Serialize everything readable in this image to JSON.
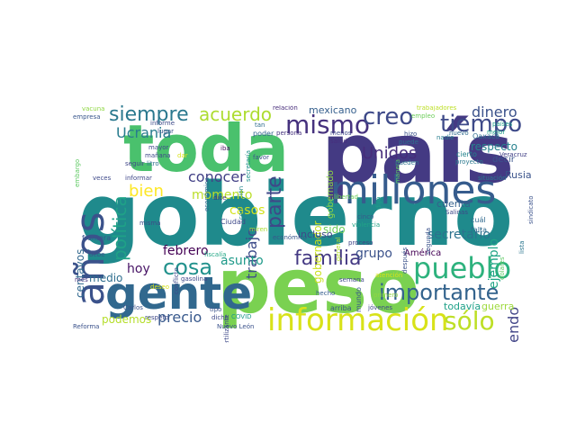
{
  "word_cloud": {
    "words": [
      {
        "id": "gobierno",
        "text": "gobierno",
        "color": "#1f8a8c"
      },
      {
        "id": "pais",
        "text": "país",
        "color": "#443a83"
      },
      {
        "id": "peso",
        "text": "peso",
        "color": "#7ad151"
      },
      {
        "id": "toda",
        "text": "toda",
        "color": "#4ac16d"
      },
      {
        "id": "gente",
        "text": "gente",
        "color": "#31688e"
      },
      {
        "id": "millones",
        "text": "millones",
        "color": "#365c8d"
      },
      {
        "id": "informacion",
        "text": "información",
        "color": "#d8e219"
      },
      {
        "id": "pueblo",
        "text": "pueblo",
        "color": "#2db27d"
      },
      {
        "id": "importante",
        "text": "importante",
        "color": "#33638d"
      },
      {
        "id": "anos",
        "text": "años",
        "color": "#3b528b"
      },
      {
        "id": "mismo",
        "text": "mismo",
        "color": "#46327e"
      },
      {
        "id": "tiempo",
        "text": "tiempo",
        "color": "#3e4a89"
      },
      {
        "id": "creo",
        "text": "creo",
        "color": "#3e4a89"
      },
      {
        "id": "siempre",
        "text": "siempre",
        "color": "#2a788e"
      },
      {
        "id": "acuerdo",
        "text": "acuerdo",
        "color": "#addc30"
      },
      {
        "id": "solo",
        "text": "sólo",
        "color": "#bddf26"
      },
      {
        "id": "familia",
        "text": "familia",
        "color": "#443983"
      },
      {
        "id": "cosa",
        "text": "cosa",
        "color": "#21918c"
      },
      {
        "id": "parte",
        "text": "parte",
        "color": "#3f4788"
      },
      {
        "id": "unidos",
        "text": "Unidos",
        "color": "#472d7b"
      },
      {
        "id": "politica",
        "text": "política",
        "color": "#1fa187"
      },
      {
        "id": "bien",
        "text": "bien",
        "color": "#fde725"
      },
      {
        "id": "ucrania",
        "text": "Ucrania",
        "color": "#287c8e"
      },
      {
        "id": "conocer",
        "text": "conocer",
        "color": "#424086"
      },
      {
        "id": "dinero",
        "text": "dinero",
        "color": "#3b528b"
      },
      {
        "id": "trabajo",
        "text": "trabajo",
        "color": "#3e4c8a"
      },
      {
        "id": "precio",
        "text": "precio",
        "color": "#38598c"
      },
      {
        "id": "haciendo",
        "text": "haciendo",
        "color": "#414487"
      },
      {
        "id": "hoy",
        "text": "hoy",
        "color": "#471365"
      },
      {
        "id": "casos",
        "text": "casos",
        "color": "#d2e21b"
      },
      {
        "id": "momento",
        "text": "momento",
        "color": "#bade28"
      },
      {
        "id": "febrero",
        "text": "febrero",
        "color": "#440154"
      },
      {
        "id": "asunto",
        "text": "asunto",
        "color": "#1f9a8a"
      },
      {
        "id": "grupo",
        "text": "grupo",
        "color": "#3b528b"
      },
      {
        "id": "secretario",
        "text": "secretario",
        "color": "#2c728e"
      },
      {
        "id": "medio",
        "text": "medio",
        "color": "#2e6e8e"
      },
      {
        "id": "podemos",
        "text": "podemos",
        "color": "#b5de2b"
      },
      {
        "id": "centavos",
        "text": "centavos",
        "color": "#31688e"
      },
      {
        "id": "ejemplo",
        "text": "ejemplo",
        "color": "#20a486"
      },
      {
        "id": "respecto",
        "text": "respecto",
        "color": "#26828e"
      },
      {
        "id": "gobernador",
        "text": "gobernador",
        "color": "#cae11f"
      },
      {
        "id": "sido",
        "text": "sido",
        "color": "#6ece58"
      },
      {
        "id": "incluso",
        "text": "incluso",
        "color": "#3e4a89"
      },
      {
        "id": "cuenta",
        "text": "cuenta",
        "color": "#34618d"
      },
      {
        "id": "rusia",
        "text": "Rusia",
        "color": "#3a538b"
      },
      {
        "id": "mexicano",
        "text": "mexicano",
        "color": "#355f8d"
      },
      {
        "id": "todavia",
        "text": "todavía",
        "color": "#1fa188"
      },
      {
        "id": "guerra",
        "text": "guerra",
        "color": "#9dd93b"
      },
      {
        "id": "america",
        "text": "América",
        "color": "#440154"
      },
      {
        "id": "gobernado",
        "text": "gobernado",
        "color": "#8fd744"
      },
      {
        "id": "decir",
        "text": "decir",
        "color": "#3a548c"
      },
      {
        "id": "mundo",
        "text": "mundo",
        "color": "#39568c"
      },
      {
        "id": "empresa",
        "text": "empresa",
        "color": "#39568c"
      },
      {
        "id": "vacuna",
        "text": "vacuna",
        "color": "#8fd744"
      },
      {
        "id": "informe",
        "text": "informe",
        "color": "#3e4a89"
      },
      {
        "id": "lugar",
        "text": "lugar",
        "color": "#3b528b"
      },
      {
        "id": "relacion",
        "text": "relación",
        "color": "#472c7a"
      },
      {
        "id": "trabajadores",
        "text": "trabajadores",
        "color": "#bddf26"
      },
      {
        "id": "empleo",
        "text": "empleo",
        "color": "#6ccd5a"
      },
      {
        "id": "nuevo",
        "text": "nuevo",
        "color": "#2f6b8e"
      },
      {
        "id": "mejor",
        "text": "mejor",
        "color": "#1fa187"
      },
      {
        "id": "proyecto",
        "text": "proyecto",
        "color": "#2a788e"
      },
      {
        "id": "paises",
        "text": "países",
        "color": "#1f9e89"
      },
      {
        "id": "veracruz",
        "text": "Veracruz",
        "color": "#424086"
      },
      {
        "id": "oaxaca",
        "text": "Oaxaca",
        "color": "#2e6d8e"
      },
      {
        "id": "nadie",
        "text": "nadie",
        "color": "#287d8e"
      },
      {
        "id": "mayor",
        "text": "mayor",
        "color": "#3e4989"
      },
      {
        "id": "manana",
        "text": "mañana",
        "color": "#3e4989"
      },
      {
        "id": "litro",
        "text": "litro",
        "color": "#2d718e"
      },
      {
        "id": "seguir",
        "text": "seguir",
        "color": "#404688"
      },
      {
        "id": "dar",
        "text": "dar",
        "color": "#d8e219"
      },
      {
        "id": "iba",
        "text": "iba",
        "color": "#471164"
      },
      {
        "id": "economica",
        "text": "económica",
        "color": "#31688e"
      },
      {
        "id": "corrupcion",
        "text": "corrupción",
        "color": "#24878e"
      },
      {
        "id": "secretaria",
        "text": "secretaría",
        "color": "#20928c"
      },
      {
        "id": "poder",
        "text": "poder",
        "color": "#32658e"
      },
      {
        "id": "persona",
        "text": "persona",
        "color": "#46337e"
      },
      {
        "id": "tan",
        "text": "tan",
        "color": "#2f6c8e"
      },
      {
        "id": "menos",
        "text": "menos",
        "color": "#3e4989"
      },
      {
        "id": "salud",
        "text": "salud",
        "color": "#472f7d"
      },
      {
        "id": "hizo",
        "text": "hizo",
        "color": "#3b528b"
      },
      {
        "id": "puede",
        "text": "puede",
        "color": "#2e6e8e"
      },
      {
        "id": "manera",
        "text": "manera",
        "color": "#5ec962"
      },
      {
        "id": "cierto",
        "text": "cierto",
        "color": "#25848e"
      },
      {
        "id": "pueden",
        "text": "pueden",
        "color": "#2c728e"
      },
      {
        "id": "lista",
        "text": "lista",
        "color": "#2a768e"
      },
      {
        "id": "situacion",
        "text": "situación",
        "color": "#2a788e"
      },
      {
        "id": "sindicato",
        "text": "sindicato",
        "color": "#3b528b"
      },
      {
        "id": "embargo",
        "text": "embargo",
        "color": "#5ec962"
      },
      {
        "id": "veces",
        "text": "veces",
        "color": "#3e4989"
      },
      {
        "id": "informar",
        "text": "informar",
        "color": "#3f4889"
      },
      {
        "id": "favor",
        "text": "favor",
        "color": "#3b528b"
      },
      {
        "id": "dijo",
        "text": "dijo",
        "color": "#1fa187"
      },
      {
        "id": "dice",
        "text": "dice",
        "color": "#46327e"
      },
      {
        "id": "libertad",
        "text": "libertad",
        "color": "#6ece58"
      },
      {
        "id": "cinco",
        "text": "cinco",
        "color": "#38598c"
      },
      {
        "id": "violencia",
        "text": "violencia",
        "color": "#20a386"
      },
      {
        "id": "general",
        "text": "general",
        "color": "#b2dd2d"
      },
      {
        "id": "segunda",
        "text": "segunda",
        "color": "#3b528b"
      },
      {
        "id": "cual",
        "text": "cuál",
        "color": "#30698e"
      },
      {
        "id": "falta",
        "text": "falta",
        "color": "#30698e"
      },
      {
        "id": "dolares",
        "text": "dolares",
        "color": "#5ec962"
      },
      {
        "id": "misma",
        "text": "misma",
        "color": "#3e4989"
      },
      {
        "id": "ciudad",
        "text": "Ciudad",
        "color": "#3e4989"
      },
      {
        "id": "miren",
        "text": "miren",
        "color": "#aadc32"
      },
      {
        "id": "economico",
        "text": "económico",
        "color": "#39568c"
      },
      {
        "id": "proceso",
        "text": "proceso",
        "color": "#404588"
      },
      {
        "id": "despues",
        "text": "después",
        "color": "#3b528b"
      },
      {
        "id": "frontera",
        "text": "frontera",
        "color": "#3b528b"
      },
      {
        "id": "conflicto",
        "text": "conflicto",
        "color": "#3e4989"
      },
      {
        "id": "debe",
        "text": "debe",
        "color": "#3b528b"
      },
      {
        "id": "fiscalia",
        "text": "fiscalía",
        "color": "#22a785"
      },
      {
        "id": "gasolina",
        "text": "gasolina",
        "color": "#3e4989"
      },
      {
        "id": "mes",
        "text": "mes",
        "color": "#46327e"
      },
      {
        "id": "deseo",
        "text": "deseo",
        "color": "#d8e219"
      },
      {
        "id": "atencion",
        "text": "atención",
        "color": "#d8e219"
      },
      {
        "id": "semana",
        "text": "semana",
        "color": "#3e4989"
      },
      {
        "id": "hecho",
        "text": "hecho",
        "color": "#355e8d"
      },
      {
        "id": "primero",
        "text": "primero",
        "color": "#90d743"
      },
      {
        "id": "salinas",
        "text": "Salinas",
        "color": "#3e4989"
      },
      {
        "id": "carlos",
        "text": "Carlos",
        "color": "#3b528b"
      },
      {
        "id": "respeto",
        "text": "respeto",
        "color": "#3e4989"
      },
      {
        "id": "tipo",
        "text": "tipo",
        "color": "#3b528b"
      },
      {
        "id": "fertilizante",
        "text": "fertilizante",
        "color": "#3e4989"
      },
      {
        "id": "covid",
        "text": "COVID",
        "color": "#1f988b"
      },
      {
        "id": "reforma",
        "text": "Reforma",
        "color": "#3b528b"
      },
      {
        "id": "dicho",
        "text": "dicho",
        "color": "#3e4989"
      },
      {
        "id": "arriba",
        "text": "arriba",
        "color": "#3b528b"
      },
      {
        "id": "jovenes",
        "text": "jóvenes",
        "color": "#3e4989"
      },
      {
        "id": "nuevo_leon",
        "text": "Nuevo León",
        "color": "#3b528b"
      }
    ]
  }
}
